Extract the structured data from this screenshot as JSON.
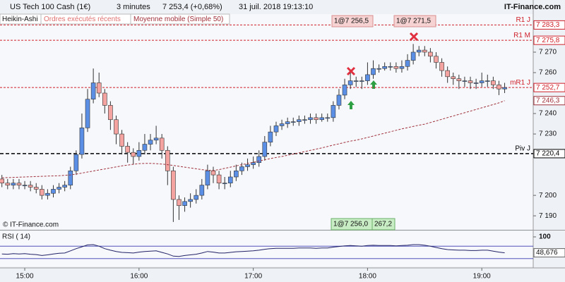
{
  "chart_data": {
    "type": "candlestick",
    "title": "US Tech 100 Cash (1€)",
    "interval": "3 minutes",
    "last_quote": "7 253,4 (+0,68%)",
    "date": "31 juil. 2018 19:13:10",
    "brand": "IT-Finance.com",
    "indicators": [
      "Heikin-Ashi",
      "Ordres exécutés récents"
    ],
    "watermark": "© IT-Finance.com",
    "x": [
      "14:48",
      "14:51",
      "14:54",
      "14:57",
      "15:00",
      "15:03",
      "15:06",
      "15:09",
      "15:12",
      "15:15",
      "15:18",
      "15:21",
      "15:24",
      "15:27",
      "15:30",
      "15:33",
      "15:36",
      "15:39",
      "15:42",
      "15:45",
      "15:48",
      "15:51",
      "15:54",
      "15:57",
      "16:00",
      "16:03",
      "16:06",
      "16:09",
      "16:12",
      "16:15",
      "16:18",
      "16:21",
      "16:24",
      "16:27",
      "16:30",
      "16:33",
      "16:36",
      "16:39",
      "16:42",
      "16:45",
      "16:48",
      "16:51",
      "16:54",
      "16:57",
      "17:00",
      "17:03",
      "17:06",
      "17:09",
      "17:12",
      "17:15",
      "17:18",
      "17:21",
      "17:24",
      "17:27",
      "17:30",
      "17:33",
      "17:36",
      "17:39",
      "17:42",
      "17:45",
      "17:48",
      "17:51",
      "17:54",
      "17:57",
      "18:00",
      "18:03",
      "18:06",
      "18:09",
      "18:12",
      "18:15",
      "18:18",
      "18:21",
      "18:24",
      "18:27",
      "18:30",
      "18:33",
      "18:36",
      "18:39",
      "18:42",
      "18:45",
      "18:48",
      "18:51",
      "18:54",
      "18:57",
      "19:00",
      "19:03",
      "19:06",
      "19:09",
      "19:12"
    ],
    "open": [
      7208,
      7206,
      7205,
      7206,
      7205,
      7205,
      7204,
      7203,
      7200,
      7201,
      7203,
      7204,
      7205,
      7212,
      7220,
      7233,
      7247,
      7255,
      7250,
      7244,
      7237,
      7230,
      7224,
      7221,
      7219,
      7222,
      7225,
      7227,
      7228,
      7222,
      7212,
      7198,
      7195,
      7197,
      7198,
      7200,
      7205,
      7212,
      7210,
      7206,
      7206,
      7209,
      7212,
      7214,
      7215,
      7216,
      7219,
      7226,
      7231,
      7234,
      7235,
      7236,
      7236,
      7237,
      7237,
      7238,
      7237,
      7238,
      7238,
      7244,
      7249,
      7254,
      7256,
      7256,
      7256,
      7259,
      7262,
      7262,
      7263,
      7263,
      7262,
      7263,
      7266,
      7270,
      7271,
      7270,
      7268,
      7265,
      7261,
      7258,
      7257,
      7256,
      7256,
      7255,
      7255,
      7256,
      7256,
      7254,
      7252
    ],
    "high": [
      7210,
      7208,
      7208,
      7208,
      7207,
      7207,
      7206,
      7205,
      7203,
      7205,
      7206,
      7207,
      7214,
      7222,
      7240,
      7252,
      7262,
      7260,
      7252,
      7246,
      7239,
      7232,
      7226,
      7223,
      7226,
      7230,
      7230,
      7234,
      7230,
      7224,
      7214,
      7200,
      7199,
      7201,
      7203,
      7208,
      7215,
      7214,
      7212,
      7209,
      7212,
      7215,
      7216,
      7218,
      7219,
      7222,
      7229,
      7234,
      7236,
      7237,
      7238,
      7238,
      7239,
      7239,
      7240,
      7240,
      7240,
      7240,
      7246,
      7252,
      7257,
      7260,
      7258,
      7258,
      7265,
      7266,
      7264,
      7265,
      7265,
      7265,
      7266,
      7269,
      7274,
      7273,
      7273,
      7272,
      7270,
      7267,
      7263,
      7260,
      7259,
      7258,
      7258,
      7257,
      7260,
      7259,
      7258,
      7256,
      7255
    ],
    "low": [
      7204,
      7203,
      7203,
      7203,
      7203,
      7202,
      7201,
      7198,
      7198,
      7199,
      7201,
      7202,
      7203,
      7210,
      7218,
      7231,
      7245,
      7248,
      7240,
      7232,
      7225,
      7220,
      7216,
      7215,
      7217,
      7220,
      7222,
      7225,
      7218,
      7205,
      7187,
      7188,
      7192,
      7194,
      7196,
      7198,
      7203,
      7206,
      7203,
      7203,
      7204,
      7207,
      7210,
      7212,
      7213,
      7214,
      7217,
      7224,
      7229,
      7232,
      7233,
      7234,
      7234,
      7235,
      7235,
      7235,
      7236,
      7236,
      7236,
      7242,
      7247,
      7252,
      7253,
      7252,
      7254,
      7257,
      7260,
      7261,
      7261,
      7260,
      7260,
      7261,
      7264,
      7268,
      7268,
      7265,
      7262,
      7258,
      7255,
      7254,
      7252,
      7253,
      7252,
      7252,
      7253,
      7253,
      7252,
      7249,
      7250
    ],
    "close": [
      7206,
      7205,
      7206,
      7205,
      7205,
      7204,
      7203,
      7200,
      7201,
      7203,
      7204,
      7205,
      7212,
      7220,
      7233,
      7247,
      7255,
      7250,
      7244,
      7237,
      7230,
      7224,
      7221,
      7219,
      7222,
      7225,
      7227,
      7228,
      7222,
      7212,
      7198,
      7195,
      7197,
      7198,
      7200,
      7205,
      7212,
      7210,
      7206,
      7206,
      7209,
      7212,
      7214,
      7215,
      7216,
      7219,
      7226,
      7231,
      7234,
      7235,
      7236,
      7236,
      7237,
      7237,
      7238,
      7237,
      7238,
      7238,
      7244,
      7249,
      7254,
      7256,
      7256,
      7256,
      7259,
      7262,
      7262,
      7263,
      7263,
      7262,
      7263,
      7266,
      7270,
      7271,
      7270,
      7268,
      7265,
      7261,
      7258,
      7257,
      7256,
      7256,
      7255,
      7255,
      7256,
      7256,
      7254,
      7252,
      7252.7
    ],
    "up_color": "#5b8fe6",
    "down_color": "#f4a3a0",
    "ma": {
      "name": "Moyenne mobile (Simple 50)",
      "color": "#a0303a",
      "values": [
        7208.6,
        7208.7,
        7208.8,
        7208.9,
        7209.0,
        7209.1,
        7209.2,
        7209.3,
        7209.4,
        7209.5,
        7209.6,
        7209.8,
        7210.0,
        7210.4,
        7210.9,
        7211.4,
        7211.9,
        7212.4,
        7212.9,
        7213.4,
        7213.9,
        7214.4,
        7214.8,
        7215.2,
        7215.5,
        7215.6,
        7215.6,
        7215.5,
        7215.3,
        7215.0,
        7214.6,
        7214.2,
        7213.8,
        7213.4,
        7213.0,
        7212.6,
        7212.3,
        7212.2,
        7212.6,
        7213.2,
        7213.8,
        7214.4,
        7215.0,
        7215.6,
        7216.2,
        7216.8,
        7217.4,
        7218.0,
        7218.5,
        7219.0,
        7219.6,
        7220.2,
        7220.8,
        7221.4,
        7222.0,
        7222.6,
        7223.2,
        7223.9,
        7224.6,
        7225.2,
        7225.9,
        7226.5,
        7227.0,
        7227.6,
        7228.3,
        7229.0,
        7229.7,
        7230.4,
        7231.1,
        7231.8,
        7232.5,
        7233.1,
        7233.7,
        7234.3,
        7234.8,
        7235.6,
        7236.4,
        7237.2,
        7238.0,
        7238.8,
        7239.6,
        7240.4,
        7241.2,
        7242.0,
        7242.8,
        7243.6,
        7244.4,
        7245.2,
        7246.3
      ],
      "last": {
        "value": 7246.3,
        "label": "7 246,3"
      }
    },
    "levels": [
      {
        "name": "R1 J",
        "value": 7283.3,
        "label": "7 283,3",
        "color": "#d0202a"
      },
      {
        "name": "R1 M",
        "value": 7275.8,
        "label": "7 275,8",
        "color": "#d0202a"
      },
      {
        "name": "mR1 J",
        "value": 7252.7,
        "label": "7 252,7",
        "color": "#d0202a"
      },
      {
        "name": "Piv J",
        "value": 7220.4,
        "label": "7 220,4",
        "color": "#000000"
      }
    ],
    "trades": [
      "1@7 256,5",
      "1@7 271,5",
      "1@7 256,0",
      "267,2"
    ],
    "ylim": [
      7183.5,
      7288.6
    ],
    "yticks": [
      {
        "value": 7270,
        "label": "7 270"
      },
      {
        "value": 7260,
        "label": "7 260"
      },
      {
        "value": 7240,
        "label": "7 240"
      },
      {
        "value": 7230,
        "label": "7 230"
      },
      {
        "value": 7200,
        "label": "7 200"
      },
      {
        "value": 7190,
        "label": "7 190"
      }
    ],
    "xlim": [
      "14:47",
      "19:27"
    ],
    "xticks": [
      "15:00",
      "16:00",
      "17:00",
      "18:00",
      "19:00"
    ],
    "rsi": {
      "name": "RSI ( 14)",
      "color": "#222266",
      "ylim": [
        0,
        100
      ],
      "yticks": [
        100
      ],
      "bands": [
        70,
        30
      ],
      "values": [
        45,
        44,
        46,
        45,
        46,
        44,
        43,
        40,
        42,
        45,
        47,
        48,
        55,
        62,
        68,
        74,
        75,
        70,
        62,
        57,
        53,
        50,
        49,
        48,
        51,
        53,
        54,
        55,
        50,
        45,
        38,
        37,
        40,
        42,
        44,
        48,
        53,
        51,
        48,
        48,
        50,
        52,
        53,
        54,
        55,
        57,
        60,
        62,
        63,
        63,
        63,
        63,
        64,
        64,
        64,
        63,
        64,
        64,
        67,
        69,
        71,
        72,
        71,
        70,
        72,
        73,
        72,
        72,
        72,
        71,
        72,
        73,
        75,
        75,
        73,
        70,
        66,
        62,
        59,
        58,
        57,
        57,
        56,
        56,
        57,
        57,
        54,
        51,
        48.676
      ],
      "last": {
        "value": 48.676,
        "label": "48,676"
      }
    }
  }
}
